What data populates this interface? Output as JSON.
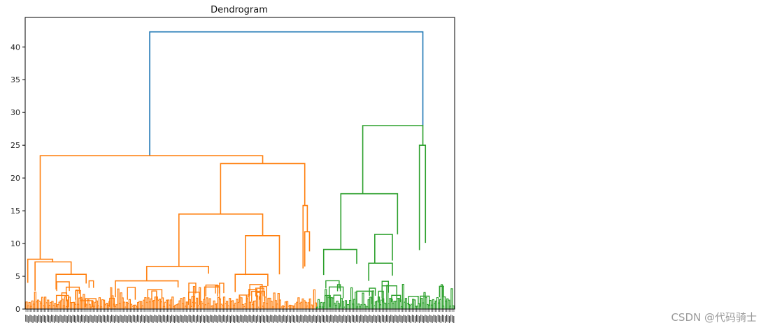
{
  "watermark": "CSDN @代码骑士",
  "colors": {
    "root": "#1f77b4",
    "cluster_a": "#ff7f0e",
    "cluster_b": "#2ca02c",
    "axis": "#000000"
  },
  "chart_data": {
    "type": "dendrogram",
    "title": "Dendrogram",
    "xlabel": "",
    "ylabel": "",
    "ylim": [
      0,
      44.5
    ],
    "yticks": [
      0,
      5,
      10,
      15,
      20,
      25,
      30,
      35,
      40
    ],
    "leaf_count": 300,
    "merges": [
      {
        "color": "root",
        "left": 0.29,
        "right": 0.926,
        "height": 42.3,
        "left_base": 23.4,
        "right_base": 28.0
      },
      {
        "color": "cluster_a",
        "left": 0.035,
        "right": 0.553,
        "height": 23.4,
        "left_base": 7.6,
        "right_base": 22.2
      },
      {
        "color": "cluster_a",
        "left": 0.455,
        "right": 0.651,
        "height": 22.2,
        "left_base": 14.5,
        "right_base": 15.8
      },
      {
        "color": "cluster_a",
        "left": 0.358,
        "right": 0.553,
        "height": 14.5,
        "left_base": 6.5,
        "right_base": 11.2
      },
      {
        "color": "cluster_a",
        "left": 0.513,
        "right": 0.592,
        "height": 11.2,
        "left_base": 5.2,
        "right_base": 5.3
      },
      {
        "color": "cluster_a",
        "left": 0.283,
        "right": 0.427,
        "height": 6.5,
        "left_base": 4.3,
        "right_base": 5.4
      },
      {
        "color": "cluster_a",
        "left": 0.21,
        "right": 0.356,
        "height": 4.3,
        "left_base": 1.8,
        "right_base": 3.3
      },
      {
        "color": "cluster_a",
        "left": 0.006,
        "right": 0.064,
        "height": 7.6,
        "left_base": 4.0,
        "right_base": 7.2
      },
      {
        "color": "cluster_a",
        "left": 0.023,
        "right": 0.107,
        "height": 7.2,
        "left_base": 2.8,
        "right_base": 5.3
      },
      {
        "color": "cluster_a",
        "left": 0.072,
        "right": 0.142,
        "height": 5.3,
        "left_base": 3.0,
        "right_base": 3.9
      },
      {
        "color": "cluster_a",
        "left": 0.489,
        "right": 0.565,
        "height": 5.3,
        "left_base": 2.6,
        "right_base": 3.5
      },
      {
        "color": "cluster_a",
        "left": 0.647,
        "right": 0.657,
        "height": 15.8,
        "left_base": 6.2,
        "right_base": 11.8
      },
      {
        "color": "cluster_a",
        "left": 0.651,
        "right": 0.662,
        "height": 11.8,
        "left_base": 6.5,
        "right_base": 8.8
      },
      {
        "color": "cluster_b",
        "left": 0.786,
        "right": 0.926,
        "height": 28.0,
        "left_base": 17.6,
        "right_base": 25.0
      },
      {
        "color": "cluster_b",
        "left": 0.735,
        "right": 0.867,
        "height": 17.6,
        "left_base": 9.1,
        "right_base": 11.4
      },
      {
        "color": "cluster_b",
        "left": 0.695,
        "right": 0.772,
        "height": 9.1,
        "left_base": 5.2,
        "right_base": 6.9
      },
      {
        "color": "cluster_b",
        "left": 0.814,
        "right": 0.855,
        "height": 11.4,
        "left_base": 7.0,
        "right_base": 7.4
      },
      {
        "color": "cluster_b",
        "left": 0.8,
        "right": 0.855,
        "height": 7.0,
        "left_base": 4.3,
        "right_base": 5.1
      },
      {
        "color": "cluster_b",
        "left": 0.918,
        "right": 0.932,
        "height": 25.0,
        "left_base": 9.0,
        "right_base": 10.1
      }
    ]
  }
}
